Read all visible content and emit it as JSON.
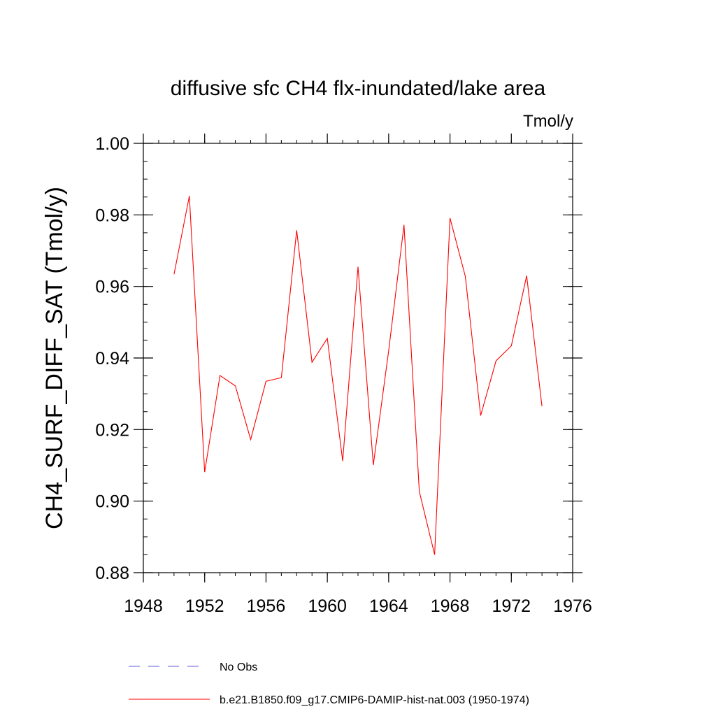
{
  "chart_data": {
    "type": "line",
    "title": "diffusive sfc CH4 flx-inundated/lake area",
    "units": "Tmol/y",
    "ylabel": "CH4_SURF_DIFF_SAT  (Tmol/y)",
    "xlabel": "",
    "xlim": [
      1948,
      1976
    ],
    "ylim": [
      0.88,
      1.0
    ],
    "x_ticks": [
      1948,
      1952,
      1956,
      1960,
      1964,
      1968,
      1972,
      1976
    ],
    "x_tick_labels": [
      "1948",
      "1952",
      "1956",
      "1960",
      "1964",
      "1968",
      "1972",
      "1976"
    ],
    "y_ticks": [
      0.88,
      0.9,
      0.92,
      0.94,
      0.96,
      0.98,
      1.0
    ],
    "y_tick_labels": [
      "0.88",
      "0.90",
      "0.92",
      "0.94",
      "0.96",
      "0.98",
      "1.00"
    ],
    "grid": false,
    "legend_position": "bottom",
    "series": [
      {
        "name": "No Obs",
        "color": "#5a5adc",
        "style": "dashed",
        "x": [],
        "values": []
      },
      {
        "name": "b.e21.B1850.f09_g17.CMIP6-DAMIP-hist-nat.003 (1950-1974)",
        "color": "#ff0000",
        "style": "solid",
        "x": [
          1950,
          1951,
          1952,
          1953,
          1954,
          1955,
          1956,
          1957,
          1958,
          1959,
          1960,
          1961,
          1962,
          1963,
          1964,
          1965,
          1966,
          1967,
          1968,
          1969,
          1970,
          1971,
          1972,
          1973,
          1974
        ],
        "values": [
          0.9634,
          0.9853,
          0.9081,
          0.9351,
          0.9322,
          0.9172,
          0.9335,
          0.9345,
          0.9757,
          0.9388,
          0.9455,
          0.9112,
          0.9655,
          0.9101,
          0.9421,
          0.9772,
          0.9027,
          0.885,
          0.9791,
          0.9628,
          0.9239,
          0.9392,
          0.9434,
          0.963,
          0.9265
        ]
      }
    ]
  }
}
